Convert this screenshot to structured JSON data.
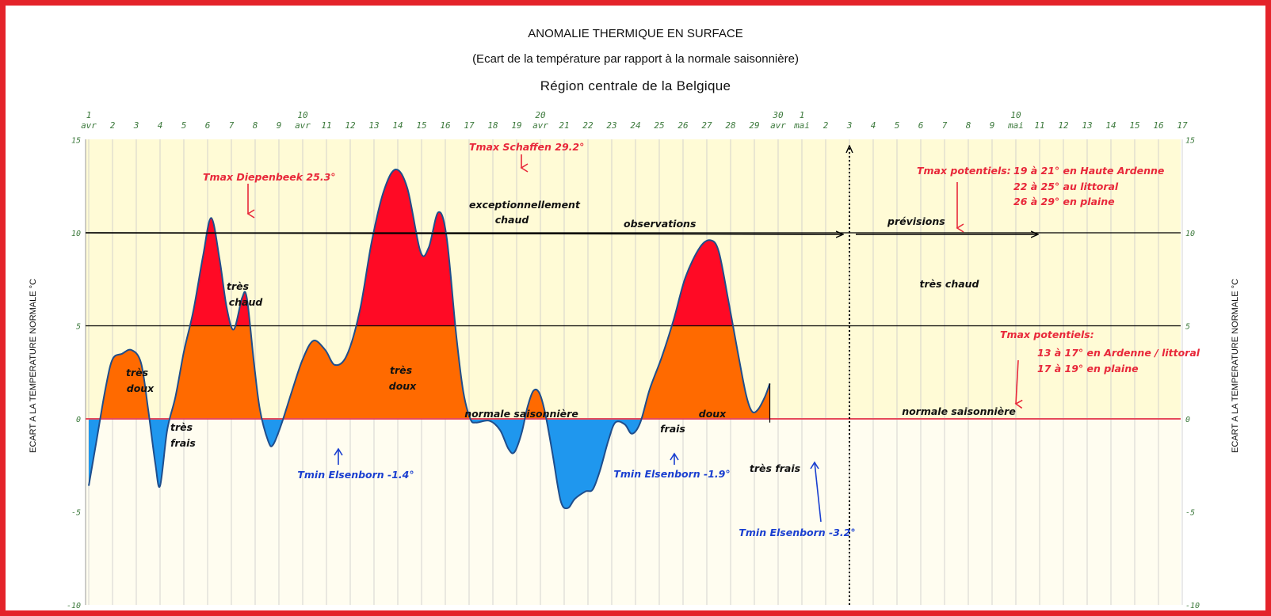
{
  "chart_data": {
    "type": "area",
    "title": "ANOMALIE THERMIQUE EN SURFACE",
    "subtitle": "(Ecart de la température par rapport à la normale saisonnière)",
    "region": "Région centrale de la Belgique",
    "ylabel_left": "ECART A LA TEMPERATURE NORMALE °C",
    "ylabel_right": "ECART A LA TEMPERATURE NORMALE °C",
    "ylim": [
      -10,
      15
    ],
    "yticks": [
      "15",
      "10",
      "5",
      "0",
      "-5",
      "-10"
    ],
    "x_labels": [
      {
        "day": "1",
        "month": "avr"
      },
      {
        "day": "2"
      },
      {
        "day": "3"
      },
      {
        "day": "4"
      },
      {
        "day": "5"
      },
      {
        "day": "6"
      },
      {
        "day": "7"
      },
      {
        "day": "8"
      },
      {
        "day": "9"
      },
      {
        "day": "10",
        "month": "avr"
      },
      {
        "day": "11"
      },
      {
        "day": "12"
      },
      {
        "day": "13"
      },
      {
        "day": "14"
      },
      {
        "day": "15"
      },
      {
        "day": "16"
      },
      {
        "day": "17"
      },
      {
        "day": "18"
      },
      {
        "day": "19"
      },
      {
        "day": "20",
        "month": "avr"
      },
      {
        "day": "21"
      },
      {
        "day": "22"
      },
      {
        "day": "23"
      },
      {
        "day": "24"
      },
      {
        "day": "25"
      },
      {
        "day": "26"
      },
      {
        "day": "27"
      },
      {
        "day": "28"
      },
      {
        "day": "29"
      },
      {
        "day": "30",
        "month": "avr"
      },
      {
        "day": "1",
        "month": "mai"
      },
      {
        "day": "2"
      },
      {
        "day": "3"
      },
      {
        "day": "4"
      },
      {
        "day": "5"
      },
      {
        "day": "6"
      },
      {
        "day": "7"
      },
      {
        "day": "8"
      },
      {
        "day": "9"
      },
      {
        "day": "10",
        "month": "mai"
      },
      {
        "day": "11"
      },
      {
        "day": "12"
      },
      {
        "day": "13"
      },
      {
        "day": "14"
      },
      {
        "day": "15"
      },
      {
        "day": "16"
      },
      {
        "day": "17"
      }
    ],
    "series": [
      {
        "points": [
          [
            0,
            -3.6
          ],
          [
            0.35,
            -1.0
          ],
          [
            0.7,
            1.6
          ],
          [
            1.0,
            3.2
          ],
          [
            1.4,
            3.5
          ],
          [
            1.8,
            3.7
          ],
          [
            2.2,
            3.0
          ],
          [
            2.5,
            0.5
          ],
          [
            2.8,
            -2.4
          ],
          [
            3.0,
            -3.6
          ],
          [
            3.3,
            -0.6
          ],
          [
            3.65,
            1.2
          ],
          [
            4.0,
            3.6
          ],
          [
            4.4,
            5.8
          ],
          [
            4.8,
            8.7
          ],
          [
            5.15,
            10.8
          ],
          [
            5.5,
            8.6
          ],
          [
            5.8,
            6.0
          ],
          [
            6.1,
            4.8
          ],
          [
            6.45,
            6.5
          ],
          [
            6.65,
            6.5
          ],
          [
            6.95,
            3.0
          ],
          [
            7.2,
            0.5
          ],
          [
            7.55,
            -1.2
          ],
          [
            7.75,
            -1.4
          ],
          [
            8.1,
            -0.3
          ],
          [
            8.55,
            1.5
          ],
          [
            9.0,
            3.2
          ],
          [
            9.45,
            4.2
          ],
          [
            9.95,
            3.7
          ],
          [
            10.35,
            2.9
          ],
          [
            10.85,
            3.4
          ],
          [
            11.4,
            5.8
          ],
          [
            11.9,
            9.5
          ],
          [
            12.4,
            12.2
          ],
          [
            12.9,
            13.4
          ],
          [
            13.4,
            12.4
          ],
          [
            13.95,
            9.0
          ],
          [
            14.3,
            9.2
          ],
          [
            14.7,
            11.1
          ],
          [
            15.05,
            9.8
          ],
          [
            15.45,
            4.6
          ],
          [
            15.75,
            1.5
          ],
          [
            16.05,
            0.0
          ],
          [
            16.3,
            -0.2
          ],
          [
            16.85,
            -0.1
          ],
          [
            17.3,
            -0.6
          ],
          [
            17.65,
            -1.6
          ],
          [
            17.9,
            -1.8
          ],
          [
            18.2,
            -0.8
          ],
          [
            18.45,
            0.6
          ],
          [
            18.7,
            1.5
          ],
          [
            18.95,
            1.4
          ],
          [
            19.2,
            0.3
          ],
          [
            19.5,
            -1.8
          ],
          [
            19.85,
            -4.4
          ],
          [
            20.15,
            -4.8
          ],
          [
            20.45,
            -4.3
          ],
          [
            20.9,
            -3.9
          ],
          [
            21.2,
            -3.8
          ],
          [
            21.5,
            -2.8
          ],
          [
            21.85,
            -1.2
          ],
          [
            22.15,
            -0.2
          ],
          [
            22.55,
            -0.3
          ],
          [
            22.85,
            -0.8
          ],
          [
            23.2,
            -0.2
          ],
          [
            23.6,
            1.6
          ],
          [
            24.1,
            3.3
          ],
          [
            24.6,
            5.3
          ],
          [
            25.1,
            7.6
          ],
          [
            25.7,
            9.2
          ],
          [
            26.15,
            9.6
          ],
          [
            26.5,
            9.0
          ],
          [
            26.9,
            6.4
          ],
          [
            27.3,
            3.6
          ],
          [
            27.65,
            1.3
          ],
          [
            27.9,
            0.4
          ],
          [
            28.15,
            0.5
          ],
          [
            28.45,
            1.2
          ],
          [
            28.65,
            1.9
          ]
        ]
      }
    ],
    "thresholds": [
      0,
      5,
      10
    ],
    "forecast_start_day_index": 32,
    "forecast_end_day_index": 40,
    "colors": {
      "negative": "#1f97ee",
      "normal": "#ff6a00",
      "hot": "#ff0a25",
      "curve": "#1f4e8c",
      "bg_upper": "#fffbd6",
      "bg_lower": "#fffdf0",
      "frame": "#e4232a",
      "annotation_red": "#e8283a",
      "annotation_blue": "#1a3fd0"
    },
    "annotations": [
      {
        "text": "Tmax Diepenbeek 25.3°",
        "color": "red"
      },
      {
        "text": "Tmax Schaffen 29.2°",
        "color": "red"
      },
      {
        "text": "exceptionnellement",
        "color": "black"
      },
      {
        "text": "chaud",
        "color": "black"
      },
      {
        "text": "observations",
        "color": "black"
      },
      {
        "text": "prévisions",
        "color": "black"
      },
      {
        "text": "Tmax potentiels:",
        "color": "red"
      },
      {
        "text": "19 à 21° en Haute Ardenne",
        "color": "red"
      },
      {
        "text": "22 à 25° au littoral",
        "color": "red"
      },
      {
        "text": "26 à 29° en plaine",
        "color": "red"
      },
      {
        "text": "très",
        "color": "black"
      },
      {
        "text": "chaud",
        "color": "black"
      },
      {
        "text": "très",
        "color": "black"
      },
      {
        "text": "doux",
        "color": "black"
      },
      {
        "text": "très",
        "color": "black"
      },
      {
        "text": "frais",
        "color": "black"
      },
      {
        "text": "très",
        "color": "black"
      },
      {
        "text": "doux",
        "color": "black"
      },
      {
        "text": "normale saisonnière",
        "color": "black"
      },
      {
        "text": "frais",
        "color": "black"
      },
      {
        "text": "doux",
        "color": "black"
      },
      {
        "text": "très frais",
        "color": "black"
      },
      {
        "text": "très chaud",
        "color": "black"
      },
      {
        "text": "Tmax potentiels:",
        "color": "red"
      },
      {
        "text": "13 à 17° en Ardenne / littoral",
        "color": "red"
      },
      {
        "text": "17 à 19° en plaine",
        "color": "red"
      },
      {
        "text": "normale saisonnière",
        "color": "black"
      },
      {
        "text": "Tmin Elsenborn -1.4°",
        "color": "blue"
      },
      {
        "text": "Tmin Elsenborn -1.9°",
        "color": "blue"
      },
      {
        "text": "Tmin Elsenborn -3.2°",
        "color": "blue"
      }
    ]
  }
}
